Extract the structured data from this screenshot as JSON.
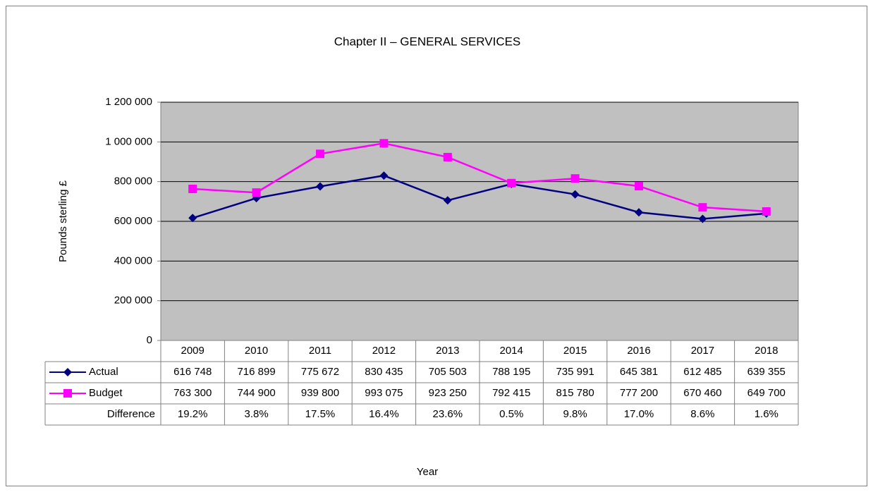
{
  "chart_data": {
    "type": "line",
    "title": "Chapter II – GENERAL SERVICES",
    "x_label": "Year",
    "y_label": "Pounds sterling £",
    "categories": [
      "2009",
      "2010",
      "2011",
      "2012",
      "2013",
      "2014",
      "2015",
      "2016",
      "2017",
      "2018"
    ],
    "series": [
      {
        "name": "Actual",
        "color": "#000080",
        "marker": "diamond",
        "values": [
          616748,
          716899,
          775672,
          830435,
          705503,
          788195,
          735991,
          645381,
          612485,
          639355
        ],
        "value_labels": [
          "616 748",
          "716 899",
          "775 672",
          "830 435",
          "705 503",
          "788 195",
          "735 991",
          "645 381",
          "612 485",
          "639 355"
        ]
      },
      {
        "name": "Budget",
        "color": "#ff00ff",
        "marker": "square",
        "values": [
          763300,
          744900,
          939800,
          993075,
          923250,
          792415,
          815780,
          777200,
          670460,
          649700
        ],
        "value_labels": [
          "763 300",
          "744 900",
          "939 800",
          "993 075",
          "923 250",
          "792 415",
          "815 780",
          "777 200",
          "670 460",
          "649 700"
        ]
      }
    ],
    "difference": {
      "name": "Difference",
      "values": [
        19.2,
        3.8,
        17.5,
        16.4,
        23.6,
        0.5,
        9.8,
        17.0,
        8.6,
        1.6
      ],
      "value_labels": [
        "19.2%",
        "3.8%",
        "17.5%",
        "16.4%",
        "23.6%",
        "0.5%",
        "9.8%",
        "17.0%",
        "8.6%",
        "1.6%"
      ]
    },
    "ylim": [
      0,
      1200000
    ],
    "yticks": [
      0,
      {
        "value": 200000,
        "label": "200 000"
      },
      {
        "value": 400000,
        "label": "400 000"
      },
      {
        "value": 600000,
        "label": "600 000"
      },
      {
        "value": 800000,
        "label": "800 000"
      },
      {
        "value": 1000000,
        "label": "1 000 000"
      },
      {
        "value": 1200000,
        "label": "1 200 000"
      }
    ],
    "grid": true,
    "plot_background": "#c0c0c0"
  }
}
